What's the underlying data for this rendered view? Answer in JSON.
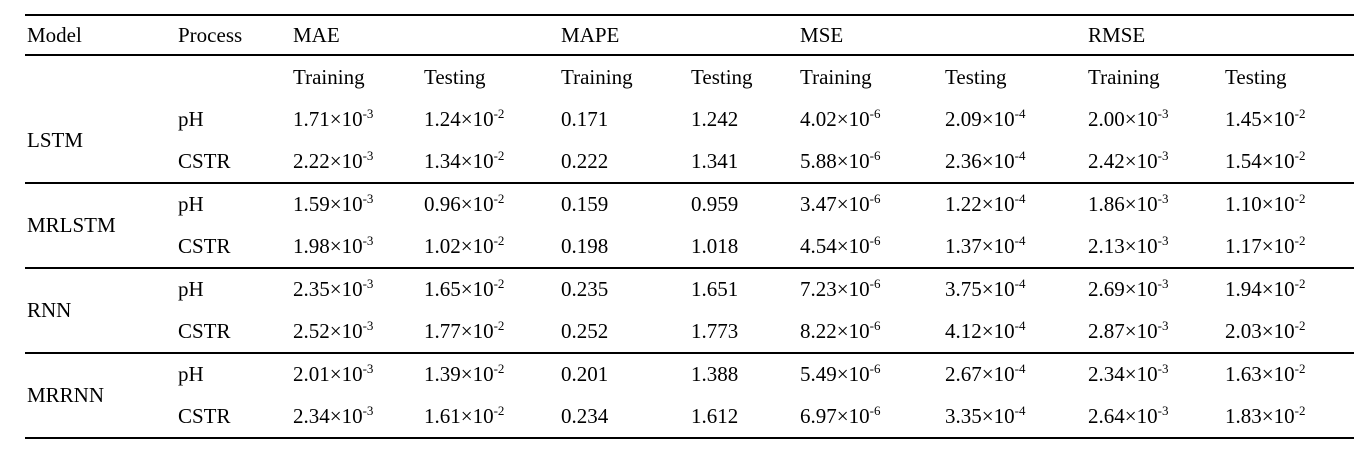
{
  "colors": {
    "background": "#ffffff",
    "text": "#000000",
    "rule": "#000000"
  },
  "chart_data": {
    "type": "table",
    "columns": [
      "Model",
      "Process",
      "MAE",
      "MAPE",
      "MSE",
      "RMSE"
    ],
    "subheaders": [
      "Training",
      "Testing"
    ],
    "metric_columns": [
      "MAE Training",
      "MAE Testing",
      "MAPE Training",
      "MAPE Testing",
      "MSE Training",
      "MSE Testing",
      "RMSE Training",
      "RMSE Testing"
    ],
    "groups": [
      {
        "model": "LSTM",
        "rows": [
          {
            "process": "pH",
            "values": [
              "1.71×10^-3",
              "1.24×10^-2",
              "0.171",
              "1.242",
              "4.02×10^-6",
              "2.09×10^-4",
              "2.00×10^-3",
              "1.45×10^-2"
            ]
          },
          {
            "process": "CSTR",
            "values": [
              "2.22×10^-3",
              "1.34×10^-2",
              "0.222",
              "1.341",
              "5.88×10^-6",
              "2.36×10^-4",
              "2.42×10^-3",
              "1.54×10^-2"
            ]
          }
        ]
      },
      {
        "model": "MRLSTM",
        "rows": [
          {
            "process": "pH",
            "values": [
              "1.59×10^-3",
              "0.96×10^-2",
              "0.159",
              "0.959",
              "3.47×10^-6",
              "1.22×10^-4",
              "1.86×10^-3",
              "1.10×10^-2"
            ]
          },
          {
            "process": "CSTR",
            "values": [
              "1.98×10^-3",
              "1.02×10^-2",
              "0.198",
              "1.018",
              "4.54×10^-6",
              "1.37×10^-4",
              "2.13×10^-3",
              "1.17×10^-2"
            ]
          }
        ]
      },
      {
        "model": "RNN",
        "rows": [
          {
            "process": "pH",
            "values": [
              "2.35×10^-3",
              "1.65×10^-2",
              "0.235",
              "1.651",
              "7.23×10^-6",
              "3.75×10^-4",
              "2.69×10^-3",
              "1.94×10^-2"
            ]
          },
          {
            "process": "CSTR",
            "values": [
              "2.52×10^-3",
              "1.77×10^-2",
              "0.252",
              "1.773",
              "8.22×10^-6",
              "4.12×10^-4",
              "2.87×10^-3",
              "2.03×10^-2"
            ]
          }
        ]
      },
      {
        "model": "MRRNN",
        "rows": [
          {
            "process": "pH",
            "values": [
              "2.01×10^-3",
              "1.39×10^-2",
              "0.201",
              "1.388",
              "5.49×10^-6",
              "2.67×10^-4",
              "2.34×10^-3",
              "1.63×10^-2"
            ]
          },
          {
            "process": "CSTR",
            "values": [
              "2.34×10^-3",
              "1.61×10^-2",
              "0.234",
              "1.612",
              "6.97×10^-6",
              "3.35×10^-4",
              "2.64×10^-3",
              "1.83×10^-2"
            ]
          }
        ]
      }
    ]
  }
}
